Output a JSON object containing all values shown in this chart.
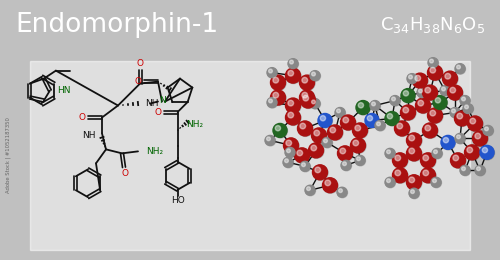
{
  "title": "Endomorphin-1",
  "formula": "C_{34}H_{38}N_{6}O_{5}",
  "header_bg": "#000000",
  "header_text_color": "#ffffff",
  "body_bg": "#f0f0f0",
  "title_fontsize": 19,
  "formula_fontsize": 13,
  "watermark_text": "Adobe Stock | #1052187350",
  "bond_color": "#111111",
  "O_color": "#cc0000",
  "N_color": "#006400",
  "atom_C": "#aa1111",
  "atom_H": "#888888",
  "atom_N": "#2255cc",
  "atom_O": "#226622"
}
